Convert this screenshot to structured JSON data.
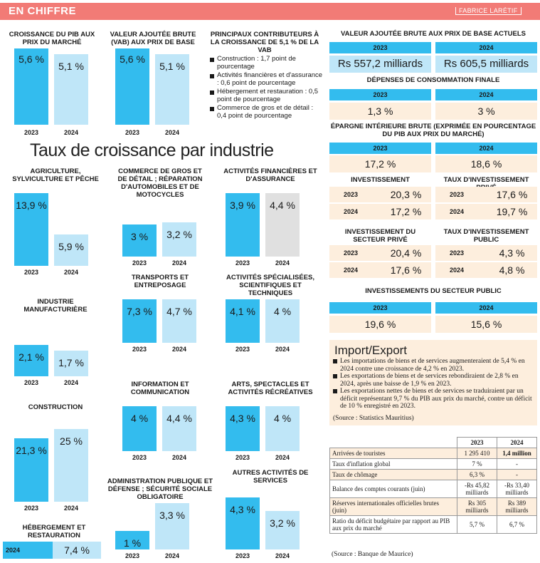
{
  "header": {
    "title": "EN CHIFFRE",
    "byline": "FABRICE LARÉTIF"
  },
  "top_charts": [
    {
      "title": "CROISSANCE DU PIB AUX PRIX DU MARCHÉ",
      "v2023": "5,6 %",
      "v2024": "5,1 %",
      "y1": "2023",
      "y2": "2024",
      "n2023": 5.6,
      "n2024": 5.1
    },
    {
      "title": "VALEUR AJOUTÉE BRUTE (VAB) AUX PRIX DE BASE",
      "v2023": "5,6 %",
      "v2024": "5,1 %",
      "y1": "2023",
      "y2": "2024",
      "n2023": 5.6,
      "n2024": 5.1
    }
  ],
  "contributors": {
    "title": "PRINCIPAUX CONTRIBUTEURS À LA CROISSANCE DE 5,1 % DE LA VAB",
    "items": [
      "Construction : 1,7 point de pourcentage",
      "Activités financières et d'assurance : 0,6 point de pourcentage",
      "Hébergement et restauration : 0,5 point de pourcentage",
      "Commerce de gros et de détail : 0,4 point de pourcentage"
    ]
  },
  "industry_title": "Taux de croissance par industrie",
  "industries": [
    {
      "title": "AGRICULTURE, SYLVICULTURE ET PÊCHE",
      "v2023": "13,9 %",
      "v2024": "5,9 %",
      "n2023": 13.9,
      "n2024": 5.9
    },
    {
      "title": "COMMERCE DE GROS ET DE DÉTAIL ; RÉPARATION D'AUTOMOBILES ET DE MOTOCYCLES",
      "v2023": "3 %",
      "v2024": "3,2 %",
      "n2023": 3,
      "n2024": 3.2
    },
    {
      "title": "ACTIVITÉS FINANCIÈRES ET D'ASSURANCE",
      "v2023": "3,9 %",
      "v2024": "4,4 %",
      "n2023": 3.9,
      "n2024": 4.4
    },
    {
      "title": "INDUSTRIE MANUFACTURIÈRE",
      "v2023": "2,1 %",
      "v2024": "1,7 %",
      "n2023": 2.1,
      "n2024": 1.7
    },
    {
      "title": "TRANSPORTS ET ENTREPOSAGE",
      "v2023": "7,3 %",
      "v2024": "4,7 %",
      "n2023": 7.3,
      "n2024": 4.7
    },
    {
      "title": "ACTIVITÉS SPÉCIALISÉES, SCIENTIFIQUES ET TECHNIQUES",
      "v2023": "4,1 %",
      "v2024": "4 %",
      "n2023": 4.1,
      "n2024": 4
    },
    {
      "title": "CONSTRUCTION",
      "v2023": "21,3 %",
      "v2024": "25 %",
      "n2023": 21.3,
      "n2024": 25
    },
    {
      "title": "INFORMATION ET COMMUNICATION",
      "v2023": "4 %",
      "v2024": "4,4 %",
      "n2023": 4,
      "n2024": 4.4
    },
    {
      "title": "ARTS, SPECTACLES ET ACTIVITÉS RÉCRÉATIVES",
      "v2023": "4,3 %",
      "v2024": "4 %",
      "n2023": 4.3,
      "n2024": 4
    },
    {
      "title": "ADMINISTRATION PUBLIQUE ET DÉFENSE ; SÉCURITÉ SOCIALE OBLIGATOIRE",
      "v2023": "1 %",
      "v2024": "3,3 %",
      "n2023": 1,
      "n2024": 3.3
    },
    {
      "title": "AUTRES ACTIVITÉS DE SERVICES",
      "v2023": "4,3 %",
      "v2024": "3,2 %",
      "n2023": 4.3,
      "n2024": 3.2
    }
  ],
  "hebergement": {
    "title": "HÉBERGEMENT ET RESTAURATION",
    "year": "2024",
    "value": "7,4 %"
  },
  "years": {
    "a": "2023",
    "b": "2024"
  },
  "right": {
    "vab_title": "VALEUR AJOUTÉE BRUTE AUX PRIX DE BASE ACTUELS",
    "vab_2023": "Rs 557,2 milliards",
    "vab_2024": "Rs 605,5 milliards",
    "dep_title": "DÉPENSES DE CONSOMMATION FINALE",
    "dep_2023": "1,3 %",
    "dep_2024": "3 %",
    "ep_title": "ÉPARGNE INTÉRIEURE BRUTE (EXPRIMÉE EN POURCENTAGE DU PIB AUX PRIX DU MARCHÉ)",
    "ep_2023": "17,2 %",
    "ep_2024": "18,6 %",
    "inv_title": "INVESTISSEMENT",
    "inv_2023": "20,3 %",
    "inv_2024": "17,2 %",
    "tip_title": "TAUX D'INVESTISSEMENT PRIVÉ",
    "tip_2023": "17,6 %",
    "tip_2024": "19,7 %",
    "isp_title": "INVESTISSEMENT DU SECTEUR PRIVÉ",
    "isp_2023": "20,4 %",
    "isp_2024": "17,6 %",
    "tipub_title": "TAUX D'INVESTISSEMENT PUBLIC",
    "tipub_2023": "4,3 %",
    "tipub_2024": "4,8 %",
    "ispub_title": "INVESTISSEMENTS DU SECTEUR PUBLIC",
    "ispub_2023": "19,6 %",
    "ispub_2024": "15,6 %"
  },
  "import_export": {
    "title": "Import/Export",
    "items": [
      "Les importations de biens et de services augmenteraient de 5,4 % en 2024 contre une croissance de 4,2 % en 2023.",
      "Les exportations de biens et de services rebondiraient de 2,8 % en 2024, après une baisse de 1,9 % en 2023.",
      "Les exportations nettes de biens et de services se traduiraient par un déficit représentant 9,7 % du PIB aux prix du marché, contre un déficit de 10 % enregistré en 2023."
    ],
    "source": "(Source : Statistics Mauritius)"
  },
  "table": {
    "headers": [
      "",
      "2023",
      "2024"
    ],
    "rows": [
      [
        "Arrivées de touristes",
        "1 295 410",
        "1,4 million"
      ],
      [
        "Taux d'inflation global",
        "7 %",
        "-"
      ],
      [
        "Taux de chômage",
        "6,3 %",
        "-"
      ],
      [
        "Balance des comptes courants (juin)",
        "-Rs 45,82 milliards",
        "-Rs 33,40 milliards"
      ],
      [
        "Réserves internationales officielles brutes (juin)",
        "Rs 305 milliards",
        "Rs 389 milliards"
      ],
      [
        "Ratio du déficit budgétaire par rapport au PIB aux prix du marché",
        "5,7 %",
        "6,7 %"
      ]
    ],
    "source": "(Source : Banque de Maurice)"
  }
}
